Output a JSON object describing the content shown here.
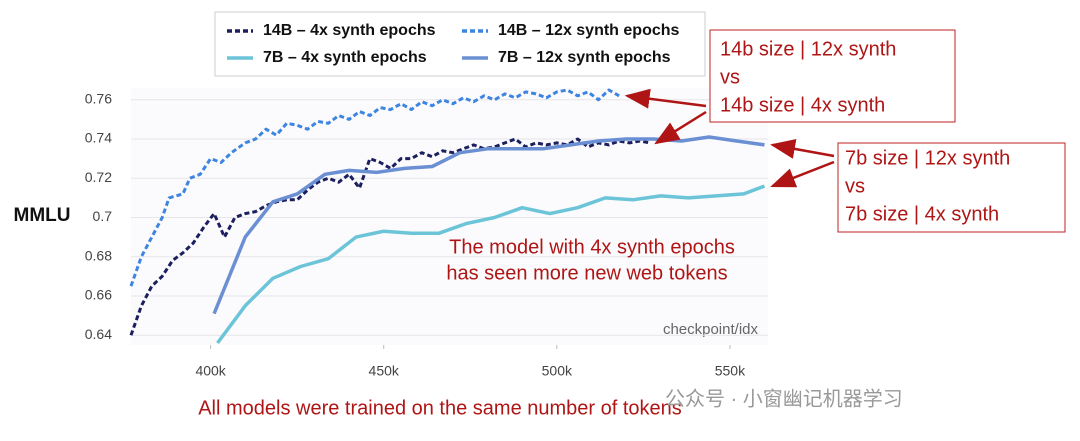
{
  "chart_data": {
    "type": "line",
    "y_label": "MMLU",
    "x_label": "checkpoint/idx",
    "xlim": [
      377000,
      561000
    ],
    "ylim": [
      0.635,
      0.766
    ],
    "xticks": [
      {
        "value": 400000,
        "label": "400k"
      },
      {
        "value": 450000,
        "label": "450k"
      },
      {
        "value": 500000,
        "label": "500k"
      },
      {
        "value": 550000,
        "label": "550k"
      }
    ],
    "yticks": [
      0.64,
      0.66,
      0.68,
      0.7,
      0.72,
      0.74,
      0.76
    ],
    "grid": true,
    "legend": "top",
    "series": [
      {
        "name": "14B – 4x synth epochs",
        "color": "#1b1f5e",
        "line_style": "dashed",
        "x": [
          377000,
          380000,
          383000,
          386000,
          389000,
          392000,
          395000,
          398000,
          401000,
          404000,
          407000,
          410000,
          413000,
          416000,
          419000,
          422000,
          425000,
          428000,
          431000,
          434000,
          437000,
          440000,
          443000,
          446000,
          449000,
          452000,
          455000,
          458000,
          461000,
          464000,
          467000,
          470000,
          473000,
          476000,
          479000,
          482000,
          485000,
          488000,
          491000,
          494000,
          497000,
          500000,
          503000,
          506000,
          509000,
          512000,
          515000,
          518000,
          521000,
          524000,
          527000
        ],
        "values": [
          0.64,
          0.655,
          0.665,
          0.67,
          0.678,
          0.682,
          0.687,
          0.695,
          0.702,
          0.69,
          0.7,
          0.702,
          0.703,
          0.706,
          0.708,
          0.709,
          0.709,
          0.714,
          0.718,
          0.72,
          0.718,
          0.722,
          0.715,
          0.73,
          0.728,
          0.725,
          0.73,
          0.73,
          0.733,
          0.731,
          0.734,
          0.733,
          0.735,
          0.737,
          0.735,
          0.736,
          0.738,
          0.74,
          0.736,
          0.738,
          0.737,
          0.738,
          0.737,
          0.74,
          0.736,
          0.738,
          0.737,
          0.739,
          0.738,
          0.739,
          0.738
        ]
      },
      {
        "name": "14B – 12x synth epochs",
        "color": "#3d85e0",
        "line_style": "dashed",
        "x": [
          377000,
          380000,
          383000,
          386000,
          388000,
          392000,
          394000,
          397000,
          400000,
          403000,
          406000,
          410000,
          413000,
          416000,
          419000,
          422000,
          425000,
          428000,
          431000,
          434000,
          437000,
          440000,
          443000,
          446000,
          449000,
          452000,
          455000,
          458000,
          461000,
          464000,
          467000,
          470000,
          473000,
          476000,
          479000,
          482000,
          485000,
          488000,
          491000,
          494000,
          497000,
          500000,
          503000,
          506000,
          509000,
          512000,
          515000,
          518000
        ],
        "values": [
          0.665,
          0.68,
          0.69,
          0.7,
          0.71,
          0.712,
          0.72,
          0.722,
          0.73,
          0.728,
          0.733,
          0.738,
          0.74,
          0.745,
          0.742,
          0.748,
          0.747,
          0.745,
          0.749,
          0.748,
          0.752,
          0.75,
          0.754,
          0.752,
          0.756,
          0.755,
          0.758,
          0.755,
          0.759,
          0.757,
          0.76,
          0.758,
          0.761,
          0.759,
          0.762,
          0.76,
          0.763,
          0.761,
          0.764,
          0.763,
          0.761,
          0.764,
          0.765,
          0.762,
          0.764,
          0.76,
          0.765,
          0.762
        ]
      },
      {
        "name": "7B – 4x synth epochs",
        "color": "#6cc4d8",
        "line_style": "solid",
        "x": [
          402000,
          410000,
          418000,
          426000,
          434000,
          442000,
          450000,
          458000,
          466000,
          474000,
          482000,
          490000,
          498000,
          506000,
          514000,
          522000,
          530000,
          538000,
          546000,
          554000,
          560000
        ],
        "values": [
          0.636,
          0.655,
          0.669,
          0.675,
          0.679,
          0.69,
          0.693,
          0.692,
          0.692,
          0.697,
          0.7,
          0.705,
          0.702,
          0.705,
          0.71,
          0.709,
          0.711,
          0.71,
          0.711,
          0.712,
          0.716
        ]
      },
      {
        "name": "7B – 12x synth epochs",
        "color": "#6b8fd3",
        "line_style": "solid",
        "x": [
          401000,
          410000,
          418000,
          425000,
          433000,
          440000,
          448000,
          456000,
          464000,
          472000,
          480000,
          488000,
          496000,
          504000,
          512000,
          520000,
          528000,
          536000,
          544000,
          552000,
          560000
        ],
        "values": [
          0.651,
          0.69,
          0.708,
          0.712,
          0.722,
          0.724,
          0.723,
          0.725,
          0.726,
          0.733,
          0.735,
          0.735,
          0.735,
          0.737,
          0.739,
          0.74,
          0.74,
          0.739,
          0.741,
          0.739,
          0.737
        ]
      }
    ],
    "annotations": {
      "box_14b": [
        "14b size | 12x synth",
        "vs",
        "14b size | 4x synth"
      ],
      "box_7b": [
        "7b size | 12x synth",
        "vs",
        "7b size | 4x synth"
      ],
      "note": [
        "The model with 4x synth epochs",
        "has seen more new web tokens"
      ],
      "footer": "All models were trained on the same number of tokens",
      "watermark": "公众号 · 小窗幽记机器学习"
    }
  }
}
